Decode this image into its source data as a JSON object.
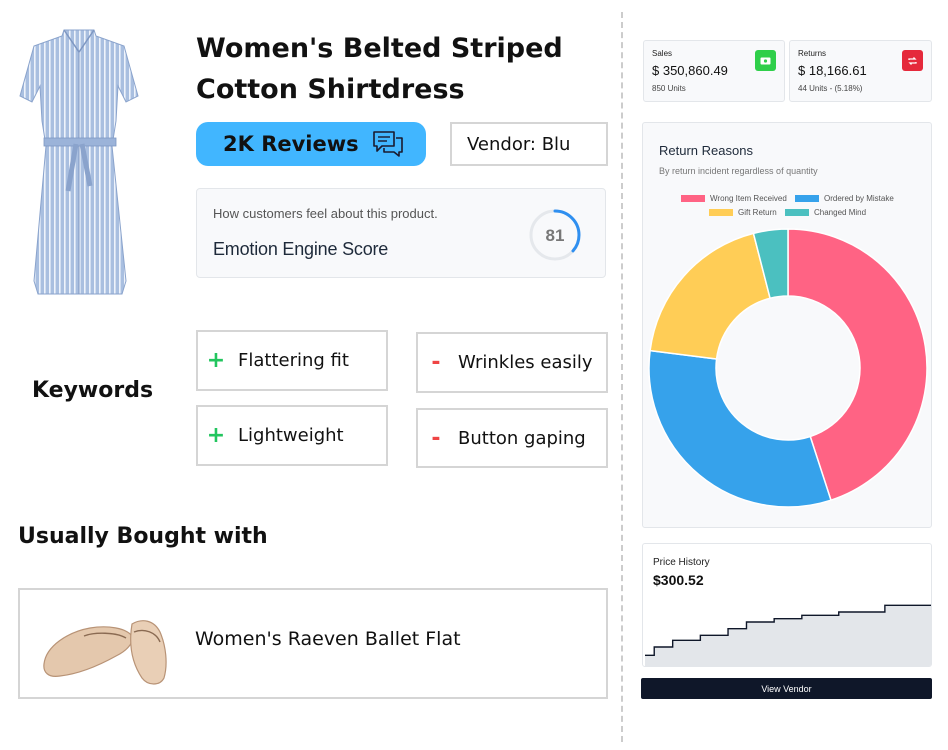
{
  "product": {
    "title": "Women's Belted Striped Cotton Shirtdress",
    "image_icon": "dress-image",
    "reviews_label": "2K Reviews",
    "vendor_label": "Vendor: Blu"
  },
  "emotion": {
    "caption": "How customers feel about this product.",
    "title": "Emotion Engine Score",
    "score": "81",
    "score_fraction": 0.81
  },
  "keywords": {
    "heading": "Keywords",
    "positive": [
      "Flattering fit",
      "Lightweight"
    ],
    "negative": [
      "Wrinkles easily",
      "Button gaping"
    ],
    "positive_sign": "+",
    "negative_sign": "-"
  },
  "bought_with": {
    "heading": "Usually Bought with",
    "item_name": "Women's Raeven Ballet Flat",
    "image_icon": "ballet-flat-image"
  },
  "stats": {
    "sales": {
      "label": "Sales",
      "value": "$ 350,860.49",
      "sub": "850 Units",
      "icon": "cash-icon",
      "color": "#2fcf4a"
    },
    "returns": {
      "label": "Returns",
      "value": "$ 18,166.61",
      "sub": "44 Units - (5.18%)",
      "icon": "return-icon",
      "color": "#e5293b"
    }
  },
  "chart_data": [
    {
      "type": "pie",
      "title": "Return Reasons",
      "subtitle": "By return incident regardless of quantity",
      "categories": [
        "Wrong Item Received",
        "Ordered by Mistake",
        "Gift Return",
        "Changed Mind"
      ],
      "values": [
        45,
        32,
        19,
        4
      ],
      "colors": [
        "#ff6384",
        "#36a2eb",
        "#ffcd56",
        "#4bc0c0"
      ],
      "legend": "top"
    },
    {
      "type": "area",
      "title": "Price History",
      "current_value_label": "$300.52",
      "x": [
        0,
        1,
        2,
        3,
        4,
        5,
        6,
        7,
        8,
        9,
        10,
        11,
        12,
        13,
        14,
        15,
        16,
        17,
        18,
        19,
        20,
        21,
        22,
        23,
        24,
        25,
        26,
        27,
        28,
        29,
        30,
        31
      ],
      "values": [
        270,
        275,
        275,
        279,
        279,
        279,
        282,
        282,
        282,
        286,
        286,
        290,
        290,
        290,
        292,
        292,
        292,
        294,
        294,
        294,
        294,
        296,
        296,
        296,
        296,
        296,
        300,
        300,
        300,
        300,
        300,
        300
      ],
      "ylim": [
        266,
        302
      ],
      "color": "#0f1729",
      "fill": "#e3e6ea"
    }
  ],
  "actions": {
    "view_vendor": "View Vendor"
  }
}
